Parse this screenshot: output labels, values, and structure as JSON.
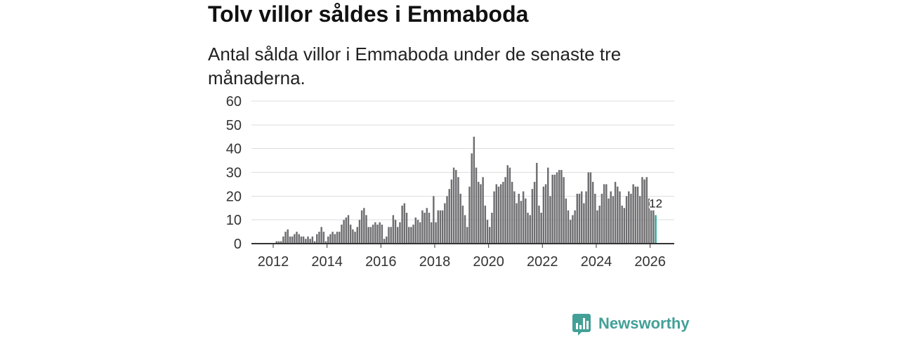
{
  "chart_data": {
    "type": "bar",
    "title": "Tolv villor såldes i Emmaboda",
    "subtitle": "Antal sålda villor i Emmaboda under de senaste tre månaderna.",
    "xlabel": "",
    "ylabel": "",
    "ylim": [
      0,
      60
    ],
    "yticks": [
      0,
      10,
      20,
      30,
      40,
      50,
      60
    ],
    "xticks": [
      "2012",
      "2014",
      "2016",
      "2018",
      "2020",
      "2022",
      "2024",
      "2026"
    ],
    "grid": true,
    "start": {
      "year": 2012,
      "month": 2
    },
    "values": [
      1,
      1,
      1,
      3,
      5,
      6,
      3,
      3,
      4,
      5,
      4,
      3,
      3,
      2,
      3,
      2,
      3,
      1,
      4,
      5,
      7,
      5,
      1,
      3,
      4,
      5,
      4,
      5,
      5,
      8,
      10,
      11,
      12,
      8,
      6,
      5,
      7,
      10,
      14,
      15,
      12,
      7,
      7,
      8,
      9,
      8,
      9,
      8,
      2,
      3,
      7,
      7,
      12,
      10,
      7,
      9,
      16,
      17,
      13,
      7,
      7,
      8,
      11,
      10,
      9,
      14,
      13,
      15,
      13,
      9,
      20,
      9,
      14,
      14,
      14,
      17,
      20,
      23,
      27,
      32,
      31,
      28,
      21,
      16,
      12,
      7,
      24,
      38,
      45,
      32,
      26,
      25,
      28,
      16,
      10,
      7,
      13,
      22,
      25,
      24,
      25,
      26,
      28,
      33,
      32,
      26,
      22,
      17,
      21,
      18,
      22,
      19,
      13,
      12,
      23,
      26,
      34,
      16,
      13,
      24,
      25,
      32,
      20,
      29,
      29,
      30,
      31,
      31,
      28,
      19,
      14,
      10,
      12,
      14,
      21,
      21,
      22,
      17,
      22,
      30,
      30,
      26,
      21,
      14,
      16,
      21,
      25,
      25,
      19,
      22,
      20,
      26,
      24,
      22,
      16,
      15,
      20,
      22,
      21,
      25,
      24,
      24,
      20,
      28,
      27,
      28,
      19,
      14,
      14,
      12
    ],
    "colors": {
      "bar": "#6e6e71",
      "highlight": "#27a8a0",
      "grid": "#dedede",
      "axis": "#333333"
    }
  },
  "brand": {
    "name": "Newsworthy",
    "icon": "newsworthy-logo-icon",
    "color": "#43a097"
  }
}
